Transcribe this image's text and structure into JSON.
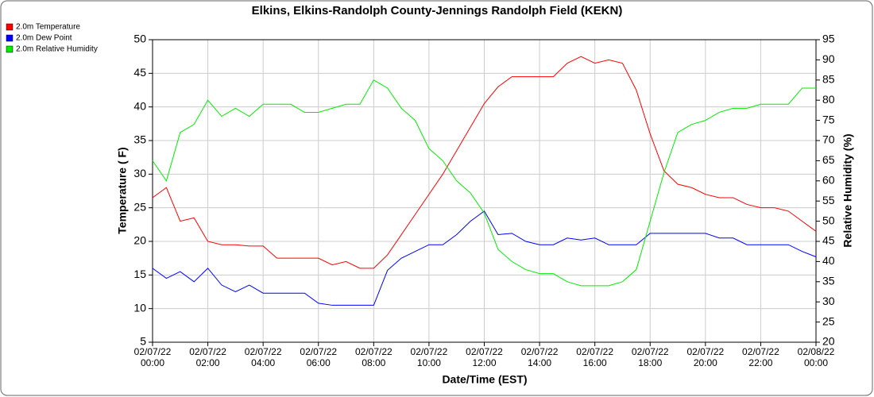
{
  "chart_data": {
    "type": "line",
    "title": "Elkins, Elkins-Randolph County-Jennings Randolph Field (KEKN)",
    "x_label": "Date/Time (EST)",
    "y_label": "Temperature ( F)",
    "y2_label": "Relative Humidity (%)",
    "x": [
      "02/07/22 00:00",
      "02/07/22 00:30",
      "02/07/22 01:00",
      "02/07/22 01:30",
      "02/07/22 02:00",
      "02/07/22 02:30",
      "02/07/22 03:00",
      "02/07/22 03:30",
      "02/07/22 04:00",
      "02/07/22 04:30",
      "02/07/22 05:00",
      "02/07/22 05:30",
      "02/07/22 06:00",
      "02/07/22 06:30",
      "02/07/22 07:00",
      "02/07/22 07:30",
      "02/07/22 08:00",
      "02/07/22 08:30",
      "02/07/22 09:00",
      "02/07/22 09:30",
      "02/07/22 10:00",
      "02/07/22 10:30",
      "02/07/22 11:00",
      "02/07/22 11:30",
      "02/07/22 12:00",
      "02/07/22 12:30",
      "02/07/22 13:00",
      "02/07/22 13:30",
      "02/07/22 14:00",
      "02/07/22 14:30",
      "02/07/22 15:00",
      "02/07/22 15:30",
      "02/07/22 16:00",
      "02/07/22 16:30",
      "02/07/22 17:00",
      "02/07/22 17:30",
      "02/07/22 18:00",
      "02/07/22 18:30",
      "02/07/22 19:00",
      "02/07/22 19:30",
      "02/07/22 20:00",
      "02/07/22 20:30",
      "02/07/22 21:00",
      "02/07/22 21:30",
      "02/07/22 22:00",
      "02/07/22 22:30",
      "02/07/22 23:00",
      "02/07/22 23:30",
      "02/08/22 00:00"
    ],
    "series": [
      {
        "name": "2.0m Temperature",
        "color": "#ff0000",
        "values": [
          26.5,
          28,
          23,
          23.5,
          20,
          19.5,
          19.5,
          19.3,
          19.3,
          17.5,
          17.5,
          17.5,
          17.5,
          16.5,
          17,
          16,
          16,
          18,
          21,
          24,
          27,
          30,
          33.5,
          37,
          40.5,
          43,
          44.5,
          44.5,
          44.5,
          44.5,
          46.5,
          47.5,
          46.5,
          47,
          46.5,
          42.5,
          36,
          30.5,
          28.5,
          28,
          27,
          26.5,
          26.5,
          25.5,
          25,
          25,
          24.5,
          23,
          21.5
        ]
      },
      {
        "name": "2.0m Dew Point",
        "color": "#0000ff",
        "values": [
          16,
          14.5,
          15.5,
          14,
          16,
          13.5,
          12.5,
          13.5,
          12.3,
          12.3,
          12.3,
          12.3,
          10.8,
          10.5,
          10.5,
          10.5,
          10.5,
          15.7,
          17.5,
          18.5,
          19.5,
          19.5,
          21,
          23,
          24.5,
          21,
          21.2,
          20,
          19.5,
          19.5,
          20.5,
          20.2,
          20.5,
          19.5,
          19.5,
          19.5,
          21.2,
          21.2,
          21.2,
          21.2,
          21.2,
          20.5,
          20.5,
          19.5,
          19.5,
          19.5,
          19.5,
          18.5,
          17.7
        ]
      },
      {
        "name": "2.0m Relative Humidity",
        "color": "#00ee00",
        "axis": "y2",
        "values": [
          65,
          60,
          72,
          74,
          80,
          76,
          78,
          76,
          79,
          79,
          79,
          77,
          77,
          78,
          79,
          79,
          85,
          83,
          78,
          75,
          68,
          65,
          60,
          57,
          52,
          43,
          40,
          38,
          37,
          37,
          35,
          34,
          34,
          34,
          35,
          38,
          50,
          62,
          72,
          74,
          75,
          77,
          78,
          78,
          79,
          79,
          79,
          83,
          83
        ]
      }
    ],
    "xlim": [
      "02/07/22 00:00",
      "02/08/22 00:00"
    ],
    "xticks": [
      "02/07/22 00:00",
      "02/07/22 02:00",
      "02/07/22 04:00",
      "02/07/22 06:00",
      "02/07/22 08:00",
      "02/07/22 10:00",
      "02/07/22 12:00",
      "02/07/22 14:00",
      "02/07/22 16:00",
      "02/07/22 18:00",
      "02/07/22 20:00",
      "02/07/22 22:00",
      "02/08/22 00:00"
    ],
    "ylim": [
      5,
      50
    ],
    "yticks": [
      5,
      10,
      15,
      20,
      25,
      30,
      35,
      40,
      45,
      50
    ],
    "y2lim": [
      20,
      95
    ],
    "y2ticks": [
      20,
      25,
      30,
      35,
      40,
      45,
      50,
      55,
      60,
      65,
      70,
      75,
      80,
      85,
      90,
      95
    ],
    "grid": true,
    "legend": "top-left"
  }
}
